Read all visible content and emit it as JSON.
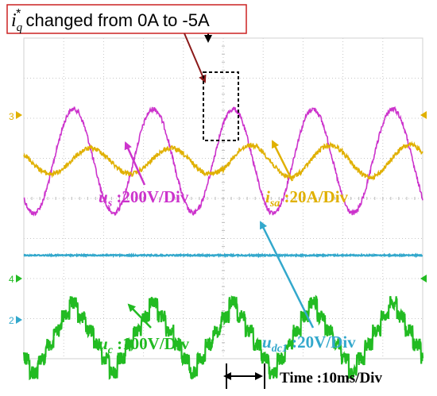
{
  "chart_data": {
    "type": "line",
    "annotation": {
      "symbol": "i",
      "subscript": "q",
      "superscript": "*",
      "text": " changed from 0A to -5A"
    },
    "time_scale": "Time :10ms/Div",
    "x_range_ms": [
      0,
      100
    ],
    "grid": true,
    "series": [
      {
        "symbol": "u",
        "subscript": "s",
        "scale": " :200V/Div",
        "color": "#cc33cc",
        "channel_marker": "",
        "waveform": "sine",
        "period_ms": 20,
        "amplitude_div": 1.3,
        "offset_div": 3.07,
        "noise": "moderate"
      },
      {
        "symbol": "i",
        "subscript": "sa",
        "scale": " :20A/Div",
        "color": "#e0b000",
        "channel_marker": "3",
        "waveform": "sine",
        "period_ms": 20,
        "amplitude_div_before": 0.32,
        "amplitude_div_after": 0.4,
        "offset_div": 3.07,
        "noise": "moderate"
      },
      {
        "symbol": "u",
        "subscript": "dc1",
        "scale": " :20V/Div",
        "color": "#33a8cc",
        "channel_marker": "",
        "waveform": "dc",
        "offset_div": 5.42,
        "noise": "low"
      },
      {
        "symbol": "u",
        "subscript": "c",
        "scale": " :100V/Div",
        "color": "#22bb22",
        "channel_marker": "4",
        "waveform": "stepped-triangle",
        "period_ms": 20,
        "high_div": 6.6,
        "low_div": 8.35,
        "noise": "high"
      }
    ],
    "extra_channel_markers": [
      "2"
    ],
    "colors": {
      "annotation_box": "#cc2222",
      "annotation_arrow": "#8b1a1a",
      "text": "#000000",
      "grid": "#c8c8c8"
    }
  }
}
